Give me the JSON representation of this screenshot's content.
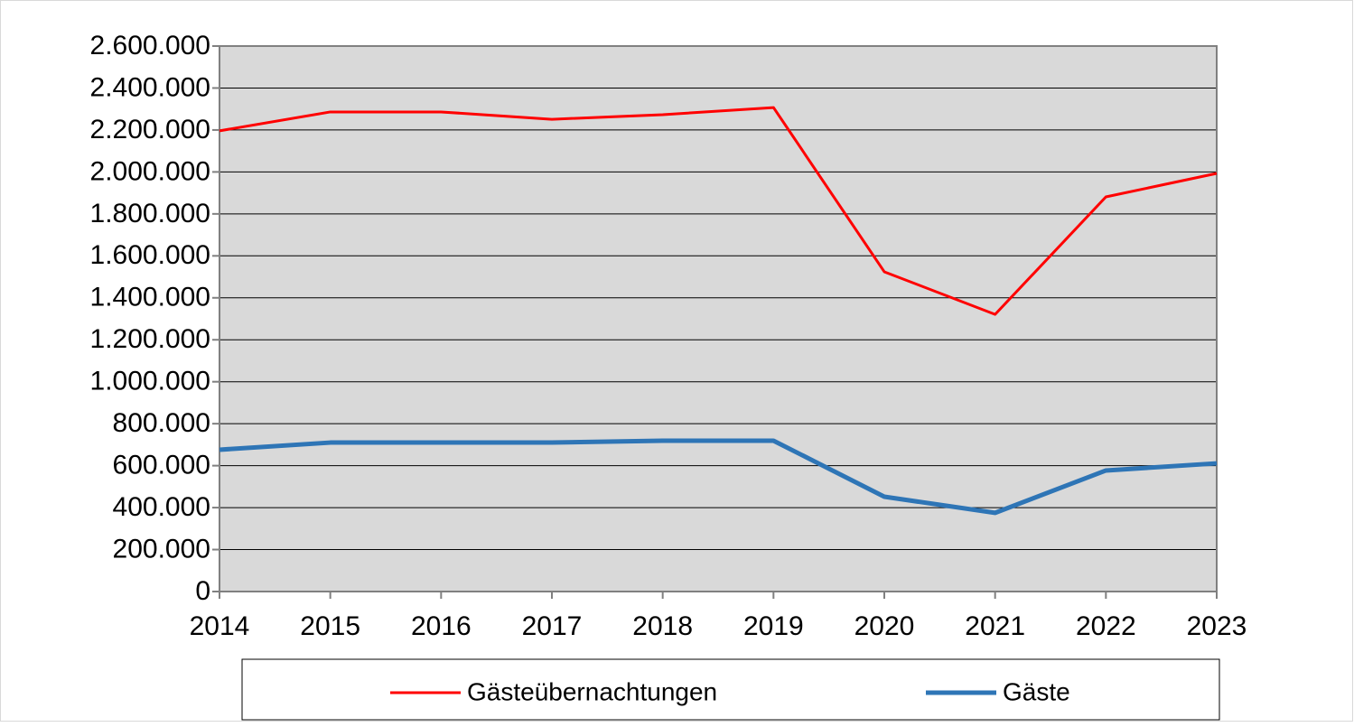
{
  "chart_data": {
    "type": "line",
    "categories": [
      "2014",
      "2015",
      "2016",
      "2017",
      "2018",
      "2019",
      "2020",
      "2021",
      "2022",
      "2023"
    ],
    "series": [
      {
        "name": "Gästeübernachtungen",
        "color": "#ff0000",
        "values": [
          2196000,
          2286000,
          2286000,
          2251000,
          2273000,
          2307000,
          1524000,
          1321000,
          1881000,
          1993000
        ]
      },
      {
        "name": "Gäste",
        "color": "#2e75b6",
        "values": [
          676000,
          710000,
          710000,
          710000,
          719000,
          719000,
          452000,
          375000,
          577000,
          611000
        ]
      }
    ],
    "ylim": [
      0,
      2600000
    ],
    "yticks": [
      0,
      {
        "value": 200000,
        "label": "200.000"
      },
      {
        "value": 400000,
        "label": "400.000"
      },
      {
        "value": 600000,
        "label": "600.000"
      },
      {
        "value": 800000,
        "label": "800.000"
      },
      {
        "value": 1000000,
        "label": "1.000.000"
      },
      {
        "value": 1200000,
        "label": "1.200.000"
      },
      {
        "value": 1400000,
        "label": "1.400.000"
      },
      {
        "value": 1600000,
        "label": "1.600.000"
      },
      {
        "value": 1800000,
        "label": "1.800.000"
      },
      {
        "value": 2000000,
        "label": "2.000.000"
      },
      {
        "value": 2200000,
        "label": "2.200.000"
      },
      {
        "value": 2400000,
        "label": "2.400.000"
      },
      {
        "value": 2600000,
        "label": "2.600.000"
      }
    ],
    "grid": true,
    "legend": "bottom"
  }
}
